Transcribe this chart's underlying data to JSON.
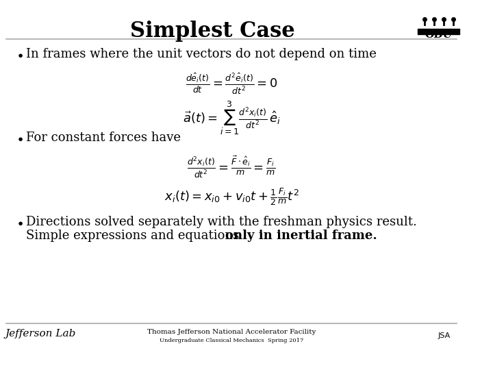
{
  "title": "Simplest Case",
  "bg_color": "#ffffff",
  "title_color": "#000000",
  "title_fontsize": 22,
  "body_fontsize": 13,
  "footer_text1": "Thomas Jefferson National Accelerator Facility",
  "footer_text2": "Undergraduate Classical Mechanics  Spring 2017",
  "bullet1": "In frames where the unit vectors do not depend on time",
  "eq1a": "\\frac{d\\hat{e}_i(t)}{dt} = \\frac{d^2\\hat{e}_i(t)}{dt^2} = 0",
  "eq1b": "\\vec{a}(t) = \\sum_{i=1}^{3} \\frac{d^2 x_i(t)}{dt^2}\\,\\hat{e}_i",
  "bullet2": "For constant forces have",
  "eq2a": "\\frac{d^2 x_i(t)}{dt^2} = \\frac{\\vec{F}\\cdot\\hat{e}_i}{m} = \\frac{F_i}{m}",
  "eq2b": "x_i(t) = x_{i0} + v_{i0}t + \\frac{1}{2}\\frac{F_i}{m}t^2",
  "bullet3a": "Directions solved separately with the freshman physics result.",
  "bullet3b_normal": "Simple expressions and equations ",
  "bullet3b_bold": "only in inertial frame.",
  "line_color": "#aaaaaa",
  "odu_bar_color": "#000000"
}
